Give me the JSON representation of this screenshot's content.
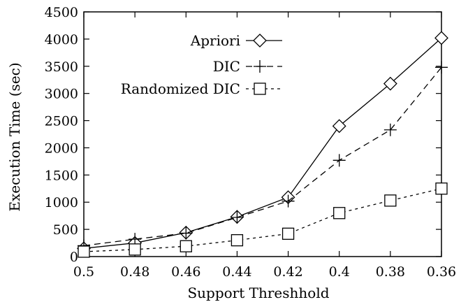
{
  "chart_data": {
    "type": "line",
    "title": "",
    "xlabel": "Support Threshhold",
    "ylabel": "Execution Time (sec)",
    "x": [
      0.5,
      0.48,
      0.46,
      0.44,
      0.42,
      0.4,
      0.38,
      0.36
    ],
    "x_tick_labels": [
      "0.5",
      "0.48",
      "0.46",
      "0.44",
      "0.42",
      "0.4",
      "0.38",
      "0.36"
    ],
    "xlim": [
      0.5,
      0.36
    ],
    "ylim": [
      0,
      4500
    ],
    "y_ticks": [
      0,
      500,
      1000,
      1500,
      2000,
      2500,
      3000,
      3500,
      4000,
      4500
    ],
    "y_tick_labels": [
      "0",
      "500",
      "1000",
      "1500",
      "2000",
      "2500",
      "3000",
      "3500",
      "4000",
      "4500"
    ],
    "grid": false,
    "legend_position": "top-center",
    "series": [
      {
        "name": "Apriori",
        "marker": "diamond",
        "line": "solid",
        "color": "#000000",
        "values": [
          150,
          250,
          440,
          730,
          1090,
          2400,
          3180,
          4020
        ]
      },
      {
        "name": "DIC",
        "marker": "plus",
        "line": "dashed",
        "color": "#000000",
        "values": [
          200,
          320,
          430,
          720,
          1020,
          1770,
          2330,
          3480
        ]
      },
      {
        "name": "Randomized DIC",
        "marker": "square",
        "line": "dotted",
        "color": "#000000",
        "values": [
          90,
          130,
          190,
          300,
          420,
          800,
          1030,
          1250
        ]
      }
    ]
  }
}
